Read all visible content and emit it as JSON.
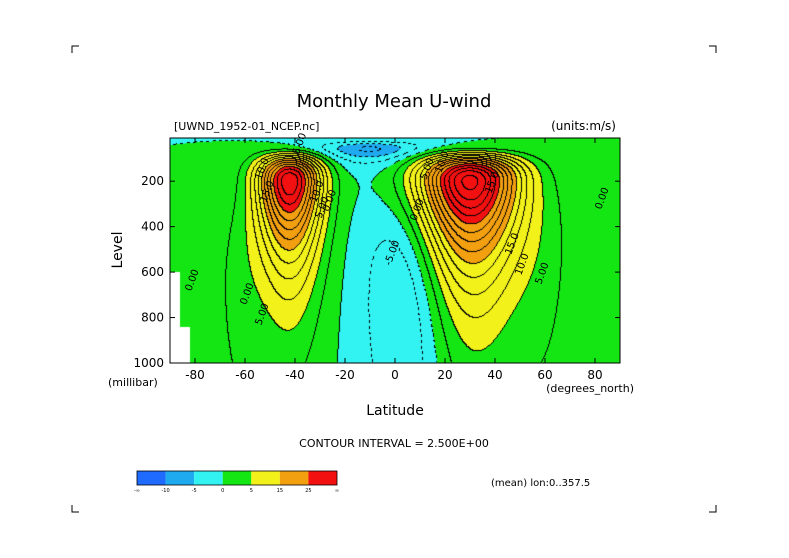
{
  "chart_data": {
    "type": "heatmap",
    "title": "Monthly Mean U-wind",
    "dataset": "[UWND_1952-01_NCEP.nc]",
    "units": "(units:m/s)",
    "xlabel": "Latitude",
    "ylabel": "Level",
    "x_units": "(degrees_north)",
    "y_units": "(millibar)",
    "xlim": [
      -90,
      90
    ],
    "ylim": [
      1000,
      10
    ],
    "x_ticks": [
      -80,
      -60,
      -40,
      -20,
      0,
      20,
      40,
      60,
      80
    ],
    "x_tick_labels": [
      "-80",
      "-60",
      "-40",
      "-20",
      "0",
      "20",
      "40",
      "60",
      "80"
    ],
    "y_ticks": [
      200,
      400,
      600,
      800,
      1000
    ],
    "y_tick_labels": [
      "200",
      "400",
      "600",
      "800",
      "1000"
    ],
    "contour_interval_text": "CONTOUR INTERVAL = 2.500E+00",
    "footer_note": "(mean) lon:0..357.5",
    "jets": [
      {
        "lat": -42,
        "level": 200,
        "peak": 32
      },
      {
        "lat": 30,
        "level": 200,
        "peak": 36
      }
    ],
    "contour_labels": [
      {
        "text": "5.00",
        "lat": -37,
        "level": 40
      },
      {
        "text": "10.0",
        "lat": -52,
        "level": 150
      },
      {
        "text": "10.0",
        "lat": -30,
        "level": 250
      },
      {
        "text": "15.0",
        "lat": -50,
        "level": 250
      },
      {
        "text": "0.00",
        "lat": -25,
        "level": 290
      },
      {
        "text": "5.00",
        "lat": -28,
        "level": 320
      },
      {
        "text": "0.00",
        "lat": -80,
        "level": 640
      },
      {
        "text": "0.00",
        "lat": -58,
        "level": 700
      },
      {
        "text": "5.00",
        "lat": -52,
        "level": 790
      },
      {
        "text": "0.00",
        "lat": 10,
        "level": 330
      },
      {
        "text": "-5.00",
        "lat": 0,
        "level": 520
      },
      {
        "text": "5.00",
        "lat": 14,
        "level": 150
      },
      {
        "text": "10.0",
        "lat": 20,
        "level": 120
      },
      {
        "text": "15.0",
        "lat": 40,
        "level": 210
      },
      {
        "text": "15.0",
        "lat": 48,
        "level": 480
      },
      {
        "text": "10.0",
        "lat": 52,
        "level": 570
      },
      {
        "text": "5.00",
        "lat": 60,
        "level": 610
      },
      {
        "text": "0.00",
        "lat": 84,
        "level": 280
      }
    ],
    "colorbar": {
      "levels": [
        "-∞",
        "-10",
        "-5",
        "0",
        "5",
        "15",
        "25",
        "∞"
      ],
      "colors": [
        "#1f6bff",
        "#1faaf0",
        "#33f2f2",
        "#14e614",
        "#f2f21a",
        "#f29f10",
        "#f21010"
      ]
    }
  }
}
